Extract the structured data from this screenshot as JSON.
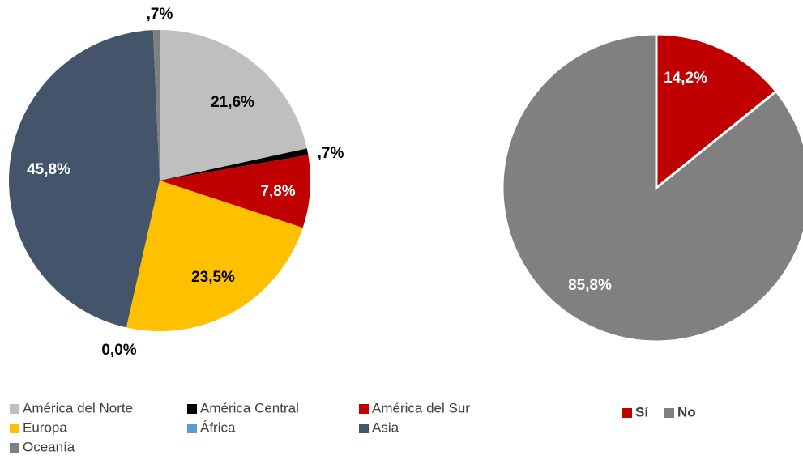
{
  "chart_data": [
    {
      "type": "pie",
      "categories": [
        "América del Norte",
        "América Central",
        "América del Sur",
        "Europa",
        "África",
        "Asia",
        "Oceanía"
      ],
      "values": [
        21.6,
        0.7,
        7.8,
        23.5,
        0.0,
        45.8,
        0.7
      ],
      "value_labels": [
        "21,6%",
        ",7%",
        "7,8%",
        "23,5%",
        "0,0%",
        "45,8%",
        ",7%"
      ],
      "colors": [
        "#bfbfbf",
        "#000000",
        "#c00000",
        "#ffc000",
        "#5b9bd5",
        "#44546a",
        "#7f7f7f"
      ],
      "legend": "bottom"
    },
    {
      "type": "pie",
      "categories": [
        "Sí",
        "No"
      ],
      "values": [
        14.2,
        85.8
      ],
      "value_labels": [
        "14,2%",
        "85,8%"
      ],
      "colors": [
        "#c00000",
        "#808080"
      ],
      "legend": "bottom"
    }
  ]
}
